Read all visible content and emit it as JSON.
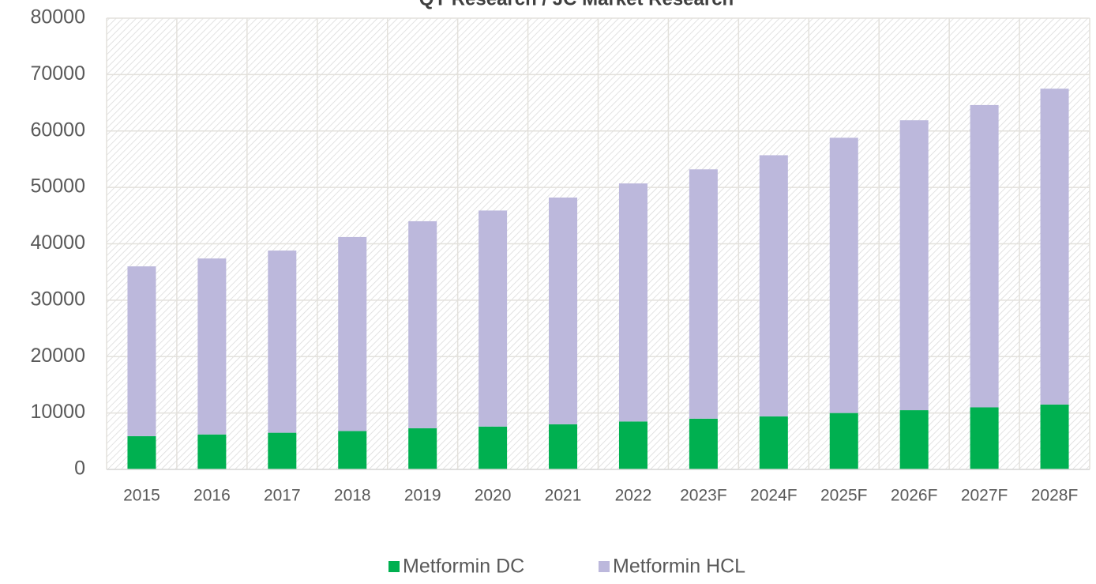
{
  "chart_data": {
    "type": "stacked_bar",
    "title": "QY Research / JC Market Research",
    "categories": [
      "2015",
      "2016",
      "2017",
      "2018",
      "2019",
      "2020",
      "2021",
      "2022",
      "2023F",
      "2024F",
      "2025F",
      "2026F",
      "2027F",
      "2028F"
    ],
    "series": [
      {
        "name": "Metformin DC",
        "color": "#00b050",
        "values": [
          5900,
          6200,
          6500,
          6800,
          7300,
          7600,
          8000,
          8500,
          9000,
          9400,
          10000,
          10500,
          11000,
          11500
        ]
      },
      {
        "name": "Metformin HCL",
        "color": "#bcb8dc",
        "values": [
          30100,
          31200,
          32300,
          34400,
          36700,
          38300,
          40200,
          42200,
          44200,
          46300,
          48800,
          51400,
          53600,
          56000
        ]
      }
    ],
    "ylim": [
      0,
      80000
    ],
    "yticks": [
      0,
      10000,
      20000,
      30000,
      40000,
      50000,
      60000,
      70000,
      80000
    ],
    "grid": true,
    "legend": "bottom"
  }
}
